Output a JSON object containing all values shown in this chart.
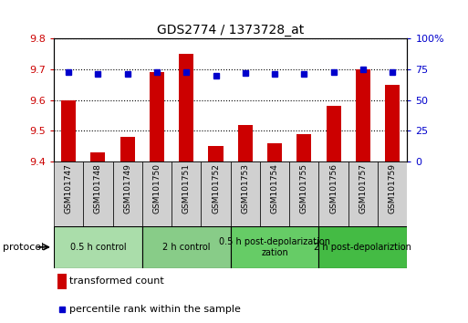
{
  "title": "GDS2774 / 1373728_at",
  "samples": [
    "GSM101747",
    "GSM101748",
    "GSM101749",
    "GSM101750",
    "GSM101751",
    "GSM101752",
    "GSM101753",
    "GSM101754",
    "GSM101755",
    "GSM101756",
    "GSM101757",
    "GSM101759"
  ],
  "red_values": [
    9.6,
    9.43,
    9.48,
    9.69,
    9.75,
    9.45,
    9.52,
    9.46,
    9.49,
    9.58,
    9.7,
    9.65
  ],
  "blue_values": [
    73,
    71,
    71,
    73,
    73,
    70,
    72,
    71,
    71,
    73,
    75,
    73
  ],
  "ylim_left": [
    9.4,
    9.8
  ],
  "ylim_right": [
    0,
    100
  ],
  "yticks_left": [
    9.4,
    9.5,
    9.6,
    9.7,
    9.8
  ],
  "yticks_right": [
    0,
    25,
    50,
    75,
    100
  ],
  "ytick_labels_right": [
    "0",
    "25",
    "50",
    "75",
    "100%"
  ],
  "groups": [
    {
      "label": "0.5 h control",
      "start": 0,
      "end": 3,
      "color": "#aaddaa"
    },
    {
      "label": "2 h control",
      "start": 3,
      "end": 6,
      "color": "#88cc88"
    },
    {
      "label": "0.5 h post-depolarization\nzation",
      "start": 6,
      "end": 9,
      "color": "#66cc66"
    },
    {
      "label": "2 h post-depolariztion",
      "start": 9,
      "end": 12,
      "color": "#44bb44"
    }
  ],
  "red_color": "#cc0000",
  "blue_color": "#0000cc",
  "bar_width": 0.5,
  "protocol_label": "protocol",
  "legend_red": "transformed count",
  "legend_blue": "percentile rank within the sample",
  "background_color": "#ffffff",
  "tick_label_color_left": "#cc0000",
  "tick_label_color_right": "#0000cc",
  "sample_box_color": "#d0d0d0",
  "grid_linestyle": "dotted",
  "grid_linewidth": 0.8,
  "grid_color": "#000000"
}
